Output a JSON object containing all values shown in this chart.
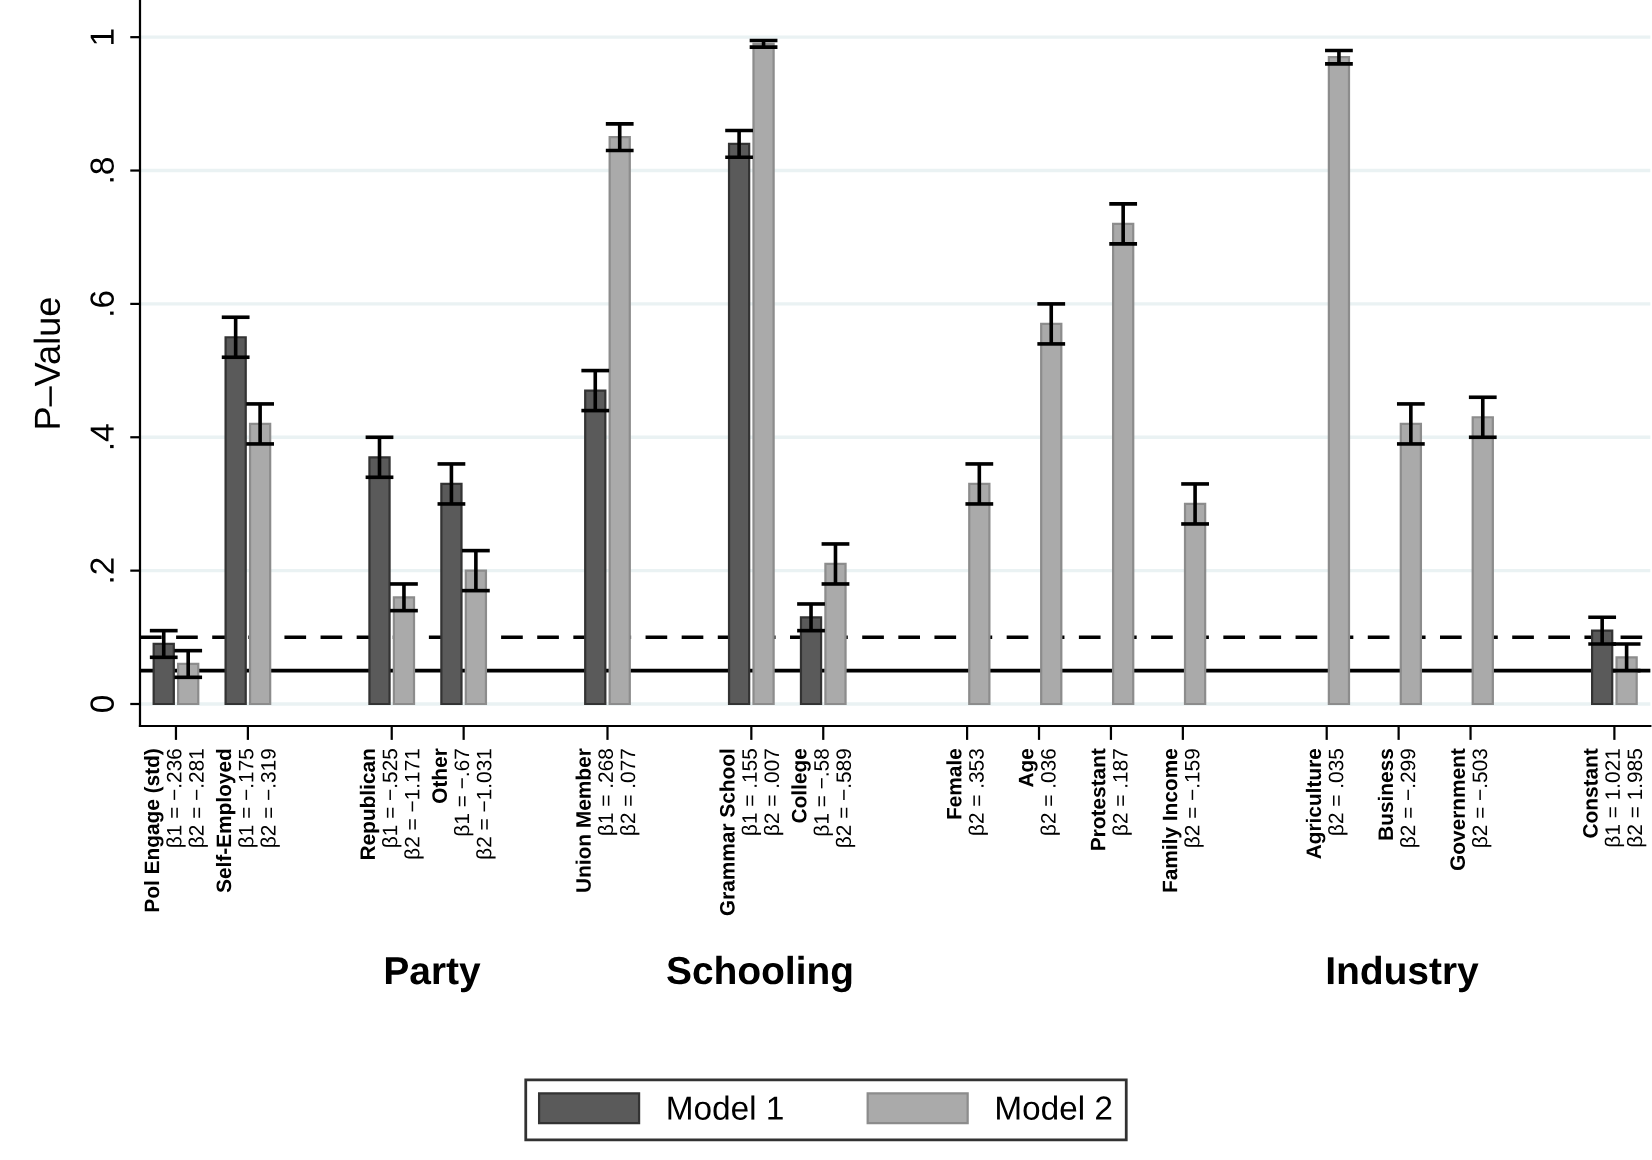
{
  "chart_data": {
    "type": "bar",
    "categories": [
      "Pol Engage (std)\nβ1 = −.236\nβ2 = −.281",
      "Self-Employed\nβ1 = −.175\nβ2 = −.319",
      null,
      "Republican\nβ1 = −.525\nβ2 = −1.171",
      "Other\nβ1 = −.67\nβ2 = −1.031",
      null,
      "Union Member\nβ1 = .268\nβ2 = .077",
      null,
      "Grammar School\nβ1 = .155\nβ2 = .007",
      "College\nβ1 = −.58\nβ2 = −.589",
      null,
      "Female\nβ2 = .353",
      "Age\nβ2 = .036",
      "Protestant\nβ2 = .187",
      "Family Income\nβ2 = −.159",
      null,
      "Agriculture\nβ2 = .035",
      "Business\nβ2 = −.299",
      "Government\nβ2 = −.503",
      null,
      "Constant\nβ1 = 1.021\nβ2 = 1.985"
    ],
    "series": [
      {
        "name": "Model 1",
        "color": "#5a5a5a",
        "values": [
          0.09,
          0.55,
          null,
          0.37,
          0.33,
          null,
          0.47,
          null,
          0.84,
          0.13,
          null,
          null,
          null,
          null,
          null,
          null,
          null,
          null,
          null,
          null,
          0.11
        ],
        "errors": [
          0.02,
          0.03,
          null,
          0.03,
          0.03,
          null,
          0.03,
          null,
          0.02,
          0.02,
          null,
          null,
          null,
          null,
          null,
          null,
          null,
          null,
          null,
          null,
          0.02
        ]
      },
      {
        "name": "Model 2",
        "color": "#aaaaaa",
        "values": [
          0.06,
          0.42,
          null,
          0.16,
          0.2,
          null,
          0.85,
          null,
          0.99,
          0.21,
          null,
          0.33,
          0.57,
          0.72,
          0.3,
          null,
          0.97,
          0.42,
          0.43,
          null,
          0.07
        ],
        "errors": [
          0.02,
          0.03,
          null,
          0.02,
          0.03,
          null,
          0.02,
          null,
          0.005,
          0.03,
          null,
          0.03,
          0.03,
          0.03,
          0.03,
          null,
          0.01,
          0.03,
          0.03,
          null,
          0.02
        ]
      }
    ],
    "ylabel": "P–Value",
    "ylim": [
      -0.033,
      1.054
    ],
    "yticks": [
      {
        "value": 0,
        "label": "0"
      },
      {
        "value": 0.2,
        "label": ".2"
      },
      {
        "value": 0.4,
        "label": ".4"
      },
      {
        "value": 0.6,
        "label": ".6"
      },
      {
        "value": 0.8,
        "label": ".8"
      },
      {
        "value": 1,
        "label": "1"
      }
    ],
    "ref_lines": [
      {
        "axis": "y",
        "value": 0.05,
        "color": "#000000",
        "line_style": "solid"
      },
      {
        "axis": "y",
        "value": 0.1,
        "color": "#000000",
        "line_style": "dashed"
      }
    ],
    "annotations": [
      "Party",
      "Schooling",
      "Industry"
    ],
    "grid": "y",
    "legend": "bottom"
  }
}
